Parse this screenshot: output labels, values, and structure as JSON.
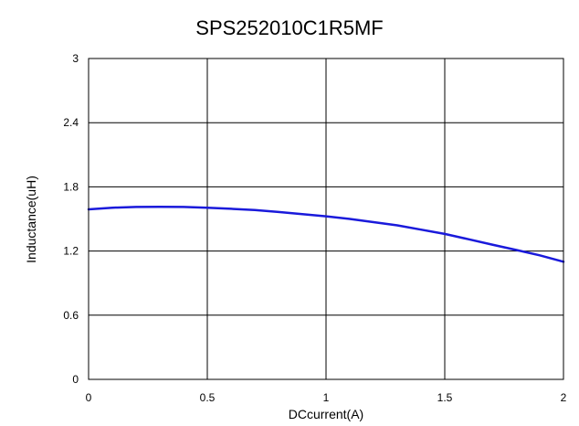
{
  "chart_data": {
    "type": "line",
    "title": "SPS252010C1R5MF",
    "xlabel": "DCcurrent(A)",
    "ylabel": "Inductance(uH)",
    "xlim": [
      0,
      2
    ],
    "ylim": [
      0,
      3
    ],
    "x_ticks": [
      "0",
      "0.5",
      "1",
      "1.5",
      "2"
    ],
    "y_ticks": [
      "0",
      "0.6",
      "1.2",
      "1.8",
      "2.4",
      "3"
    ],
    "grid": true,
    "series": [
      {
        "color": "#1a1adb",
        "x": [
          0,
          0.1,
          0.2,
          0.3,
          0.4,
          0.5,
          0.6,
          0.7,
          0.8,
          0.9,
          1.0,
          1.1,
          1.2,
          1.3,
          1.4,
          1.5,
          1.6,
          1.7,
          1.8,
          1.9,
          2.0
        ],
        "y": [
          1.59,
          1.605,
          1.612,
          1.613,
          1.612,
          1.605,
          1.595,
          1.583,
          1.565,
          1.545,
          1.525,
          1.5,
          1.47,
          1.44,
          1.4,
          1.36,
          1.31,
          1.26,
          1.21,
          1.16,
          1.1
        ]
      }
    ]
  }
}
